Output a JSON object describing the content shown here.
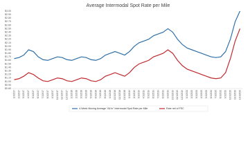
{
  "chart_data": {
    "type": "line",
    "title": "Average Intermodal Spot Rate per Mile",
    "categories": [
      "1/1/2017",
      "2/1/2017",
      "3/1/2017",
      "4/1/2017",
      "5/1/2017",
      "6/1/2017",
      "7/1/2017",
      "8/1/2017",
      "9/1/2017",
      "10/1/2017",
      "11/1/2017",
      "12/1/2017",
      "1/1/2018",
      "2/1/2018",
      "3/1/2018",
      "4/1/2018",
      "5/1/2018",
      "6/1/2018",
      "7/1/2018",
      "8/1/2018",
      "9/1/2018",
      "10/1/2018",
      "11/1/2018",
      "12/1/2018",
      "1/1/2019",
      "2/1/2019",
      "3/1/2019",
      "4/1/2019",
      "5/1/2019",
      "6/1/2019",
      "7/1/2019",
      "8/1/2019",
      "9/1/2019",
      "10/1/2019",
      "11/1/2019",
      "12/1/2019",
      "1/1/2020",
      "2/1/2020",
      "3/1/2020",
      "4/1/2020",
      "5/1/2020",
      "6/1/2020",
      "7/1/2020",
      "8/1/2020",
      "9/1/2020",
      "10/1/2020",
      "11/1/2020",
      "12/1/2020"
    ],
    "series": [
      {
        "name": "4-Week Moving Average \"All In\" Intermodal Spot Rate per Mile",
        "color": "#2f6fa8",
        "values": [
          1.65,
          1.68,
          1.75,
          1.9,
          1.85,
          1.7,
          1.62,
          1.6,
          1.65,
          1.7,
          1.68,
          1.62,
          1.6,
          1.65,
          1.7,
          1.68,
          1.62,
          1.6,
          1.65,
          1.75,
          1.8,
          1.85,
          1.8,
          1.75,
          1.85,
          2.0,
          2.1,
          2.15,
          2.2,
          2.3,
          2.35,
          2.4,
          2.5,
          2.4,
          2.2,
          2.05,
          1.95,
          1.9,
          1.85,
          1.8,
          1.75,
          1.7,
          1.68,
          1.7,
          1.85,
          2.2,
          2.7,
          3.0
        ]
      },
      {
        "name": "Rate net of FSC",
        "color": "#c0282d",
        "values": [
          1.05,
          1.08,
          1.15,
          1.25,
          1.2,
          1.1,
          1.02,
          1.0,
          1.05,
          1.1,
          1.08,
          1.02,
          1.0,
          1.05,
          1.1,
          1.08,
          1.02,
          1.0,
          1.05,
          1.15,
          1.2,
          1.25,
          1.2,
          1.15,
          1.25,
          1.4,
          1.5,
          1.55,
          1.6,
          1.7,
          1.75,
          1.8,
          1.9,
          1.8,
          1.6,
          1.45,
          1.35,
          1.3,
          1.25,
          1.2,
          1.15,
          1.1,
          1.08,
          1.1,
          1.25,
          1.65,
          2.15,
          2.5
        ]
      }
    ],
    "ylim": [
      0.8,
      3.0
    ],
    "yticks": [
      {
        "value": 0.8,
        "label": "$0.80"
      },
      {
        "value": 0.9,
        "label": "$0.90"
      },
      {
        "value": 1.0,
        "label": "$1.00"
      },
      {
        "value": 1.1,
        "label": "$1.10"
      },
      {
        "value": 1.2,
        "label": "$1.20"
      },
      {
        "value": 1.3,
        "label": "$1.30"
      },
      {
        "value": 1.4,
        "label": "$1.40"
      },
      {
        "value": 1.5,
        "label": "$1.50"
      },
      {
        "value": 1.6,
        "label": "$1.60"
      },
      {
        "value": 1.7,
        "label": "$1.70"
      },
      {
        "value": 1.8,
        "label": "$1.80"
      },
      {
        "value": 1.9,
        "label": "$1.90"
      },
      {
        "value": 2.0,
        "label": "$2.00"
      },
      {
        "value": 2.1,
        "label": "$2.10"
      },
      {
        "value": 2.2,
        "label": "$2.20"
      },
      {
        "value": 2.3,
        "label": "$2.30"
      },
      {
        "value": 2.4,
        "label": "$2.40"
      },
      {
        "value": 2.5,
        "label": "$2.50"
      },
      {
        "value": 2.6,
        "label": "$2.60"
      },
      {
        "value": 2.7,
        "label": "$2.70"
      },
      {
        "value": 2.8,
        "label": "$2.80"
      },
      {
        "value": 2.9,
        "label": "$2.90"
      },
      {
        "value": 3.0,
        "label": "$3.00"
      }
    ],
    "grid": false
  }
}
